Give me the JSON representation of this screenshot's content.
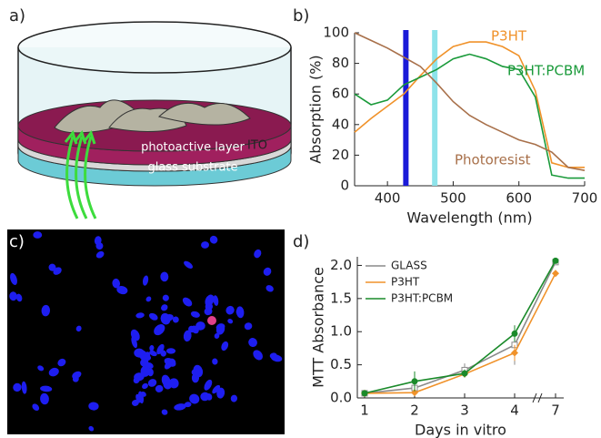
{
  "figure": {
    "panel_labels": [
      "a)",
      "b)",
      "c)",
      "d)"
    ],
    "layers": [
      "photoactive layer",
      "ITO",
      "glass substrate"
    ]
  },
  "chart_data": [
    {
      "type": "line",
      "x_label": "Wavelength (nm)",
      "y_label": "Absorption (%)",
      "x": [
        350,
        375,
        400,
        425,
        450,
        475,
        500,
        525,
        550,
        575,
        600,
        625,
        650,
        675,
        700
      ],
      "series": [
        {
          "name": "P3HT",
          "color": "#f0922a",
          "values": [
            35,
            44,
            52,
            60,
            72,
            83,
            91,
            94,
            94,
            91,
            85,
            62,
            15,
            12,
            12
          ]
        },
        {
          "name": "P3HT:PCBM",
          "color": "#1a9a3a",
          "values": [
            60,
            53,
            56,
            66,
            71,
            76,
            83,
            86,
            83,
            78,
            76,
            58,
            7,
            5,
            5
          ]
        },
        {
          "name": "Photoresist",
          "color": "#a8704a",
          "values": [
            100,
            95,
            90,
            84,
            78,
            67,
            55,
            46,
            40,
            35,
            30,
            27,
            22,
            12,
            10
          ]
        }
      ],
      "bands": [
        {
          "x": 428,
          "color": "#1a1ad8"
        },
        {
          "x": 472,
          "color": "#8ee3ea"
        }
      ],
      "xlim": [
        350,
        700
      ],
      "xticks": [
        400,
        500,
        600,
        700
      ],
      "ylim": [
        0,
        100
      ],
      "yticks": [
        0,
        20,
        40,
        60,
        80,
        100
      ]
    },
    {
      "type": "line",
      "x_label": "Days in vitro",
      "y_label": "MTT Absorbance",
      "categories": [
        "1",
        "2",
        "3",
        "4",
        "7"
      ],
      "series": [
        {
          "name": "GLASS",
          "color": "#8a8a8a",
          "values": [
            0.07,
            0.15,
            0.42,
            0.8,
            2.05
          ],
          "errors": [
            0.01,
            0.03,
            0.1,
            0.3,
            0.03
          ]
        },
        {
          "name": "P3HT",
          "color": "#f0922a",
          "values": [
            0.07,
            0.08,
            0.36,
            0.68,
            1.88
          ],
          "errors": [
            0.01,
            0.02,
            0.05,
            0.12,
            0.05
          ]
        },
        {
          "name": "P3HT:PCBM",
          "color": "#1a8a2a",
          "values": [
            0.07,
            0.25,
            0.37,
            0.97,
            2.07
          ],
          "errors": [
            0.01,
            0.15,
            0.06,
            0.12,
            0.03
          ]
        }
      ],
      "ylim": [
        0,
        2.13
      ],
      "yticks": [
        {
          "value": 0,
          "label": "0.0"
        },
        0.5,
        {
          "value": 1,
          "label": "1.0"
        },
        1.5,
        {
          "value": 2,
          "label": "2.0"
        }
      ]
    }
  ]
}
